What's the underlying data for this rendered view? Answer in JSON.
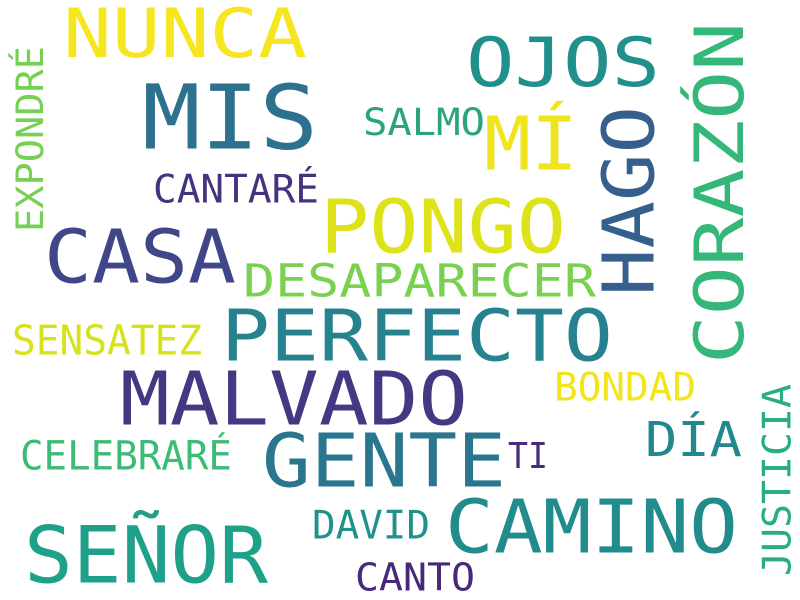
{
  "words": {
    "nunca": {
      "text": "NUNCA",
      "color": "#f6e620"
    },
    "mis": {
      "text": "MIS",
      "color": "#2c718e"
    },
    "ojos": {
      "text": "OJOS",
      "color": "#21908d"
    },
    "corazon": {
      "text": "CORAZÓN",
      "color": "#35b779"
    },
    "expondre": {
      "text": "EXPONDRÉ",
      "color": "#75d054"
    },
    "salmo": {
      "text": "SALMO",
      "color": "#2ba47c"
    },
    "mi": {
      "text": "MÍ",
      "color": "#f0e51c"
    },
    "hago": {
      "text": "HAGO",
      "color": "#355f8d"
    },
    "cantare": {
      "text": "CANTARÉ",
      "color": "#46327e"
    },
    "pongo": {
      "text": "PONGO",
      "color": "#dde318"
    },
    "casa": {
      "text": "CASA",
      "color": "#3f4788"
    },
    "desaparecer": {
      "text": "DESAPARECER",
      "color": "#7ad151"
    },
    "perfecto": {
      "text": "PERFECTO",
      "color": "#26828e"
    },
    "sensatez": {
      "text": "SENSATEZ",
      "color": "#d8e219"
    },
    "malvado": {
      "text": "MALVADO",
      "color": "#433982"
    },
    "bondad": {
      "text": "BONDAD",
      "color": "#f2e51c"
    },
    "justicia": {
      "text": "JUSTICIA",
      "color": "#29af7f"
    },
    "dia": {
      "text": "DÍA",
      "color": "#23888e"
    },
    "gente": {
      "text": "GENTE",
      "color": "#2a768e"
    },
    "celebrare": {
      "text": "CELEBRARÉ",
      "color": "#3bbb75"
    },
    "ti": {
      "text": "TI",
      "color": "#472d7b"
    },
    "camino": {
      "text": "CAMINO",
      "color": "#228c8d"
    },
    "david": {
      "text": "DAVID",
      "color": "#21918c"
    },
    "senor": {
      "text": "SEÑOR",
      "color": "#1fa088"
    },
    "canto": {
      "text": "CANTO",
      "color": "#482878"
    }
  }
}
